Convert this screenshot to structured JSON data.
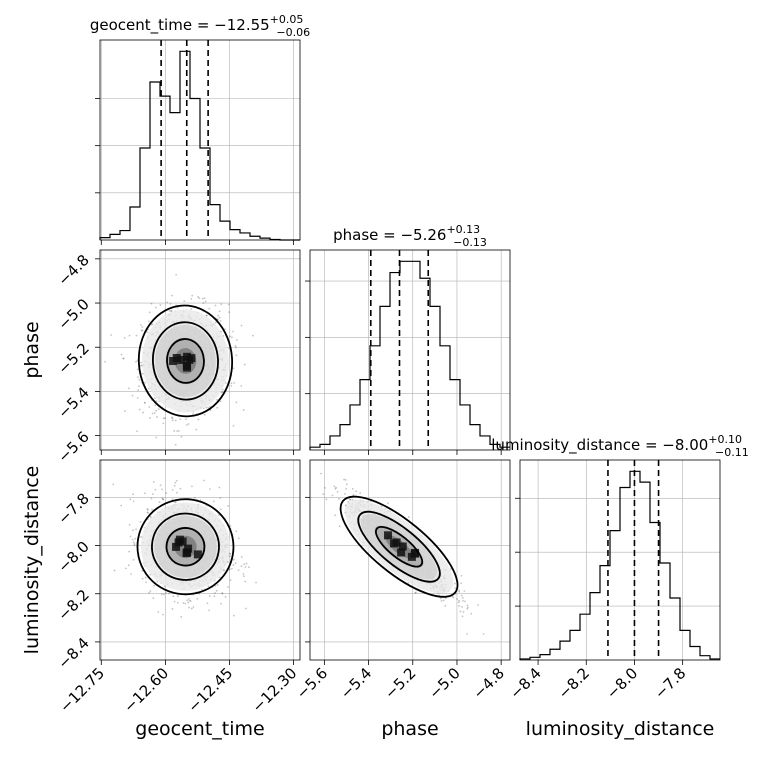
{
  "chart_data": {
    "type": "corner",
    "parameters": [
      "geocent_time",
      "phase",
      "luminosity_distance"
    ],
    "axis_labels": {
      "x": [
        "geocent_time",
        "phase",
        "luminosity_distance"
      ],
      "y": [
        "phase",
        "luminosity_distance"
      ]
    },
    "ranges": {
      "geocent_time": [
        -12.753,
        -12.285
      ],
      "phase": [
        -5.665,
        -4.76
      ],
      "luminosity_distance": [
        -8.475,
        -7.645
      ]
    },
    "ticks": {
      "geocent_time": [
        -12.75,
        -12.6,
        -12.45,
        -12.3
      ],
      "phase": [
        -5.6,
        -5.4,
        -5.2,
        -5.0,
        -4.8
      ],
      "phase_y": [
        -4.8,
        -5.0,
        -5.2,
        -5.4,
        -5.6
      ],
      "luminosity_distance_x": [
        -8.4,
        -8.2,
        -8.0,
        -7.8
      ],
      "luminosity_distance_y": [
        -7.8,
        -8.0,
        -8.2,
        -8.4
      ]
    },
    "tick_labels": {
      "geocent_time": [
        "−12.75",
        "−12.60",
        "−12.45",
        "−12.30"
      ],
      "phase": [
        "−5.6",
        "−5.4",
        "−5.2",
        "−5.0",
        "−4.8"
      ],
      "luminosity_distance": [
        "−8.4",
        "−8.2",
        "−8.0",
        "−7.8"
      ]
    },
    "titles": [
      {
        "param": "geocent_time",
        "prefix": "geocent_time = −12.55",
        "sup": "+0.05",
        "sub": "−0.06"
      },
      {
        "param": "phase",
        "prefix": "phase = −5.26",
        "sup": "+0.13",
        "sub": "−0.13"
      },
      {
        "param": "luminosity_distance",
        "prefix": "luminosity_distance = −8.00",
        "sup": "+0.10",
        "sub": "−0.11"
      }
    ],
    "quantiles": {
      "geocent_time": [
        -12.61,
        -12.55,
        -12.5
      ],
      "phase": [
        -5.39,
        -5.26,
        -5.13
      ],
      "luminosity_distance": [
        -8.11,
        -8.0,
        -7.9
      ]
    },
    "histograms": {
      "geocent_time": {
        "edges_start": -12.753,
        "edges_end": -12.285,
        "counts": [
          0.05,
          0.12,
          0.2,
          0.7,
          1.95,
          3.35,
          3.05,
          2.7,
          4.0,
          3.0,
          1.95,
          0.75,
          0.4,
          0.22,
          0.15,
          0.08,
          0.04,
          0.01,
          0,
          0
        ]
      },
      "phase": {
        "edges_start": -5.665,
        "edges_end": -4.76,
        "counts": [
          0.05,
          0.1,
          0.25,
          0.45,
          0.8,
          1.25,
          1.85,
          2.55,
          3.15,
          3.35,
          3.35,
          3.05,
          2.55,
          1.85,
          1.25,
          0.8,
          0.45,
          0.25,
          0.1,
          0.05
        ]
      },
      "luminosity_distance": {
        "edges_start": -8.475,
        "edges_end": -7.645,
        "counts": [
          0.02,
          0.05,
          0.1,
          0.2,
          0.35,
          0.55,
          0.85,
          1.25,
          1.75,
          2.4,
          3.2,
          3.5,
          3.3,
          2.55,
          1.8,
          1.15,
          0.55,
          0.25,
          0.08,
          0.02
        ]
      }
    },
    "posterior": {
      "geocent_time": {
        "mean": -12.553,
        "sd": 0.05
      },
      "phase": {
        "mean": -5.262,
        "sd": 0.12
      },
      "luminosity_distance": {
        "mean": -8.005,
        "sd": 0.1
      },
      "corr_time_phase": 0.05,
      "corr_time_distance": -0.15,
      "corr_phase_distance": -0.9
    },
    "grid": true,
    "colors": {
      "line": "#000000",
      "grid": "#b0b0b0",
      "points": "#555555"
    }
  }
}
